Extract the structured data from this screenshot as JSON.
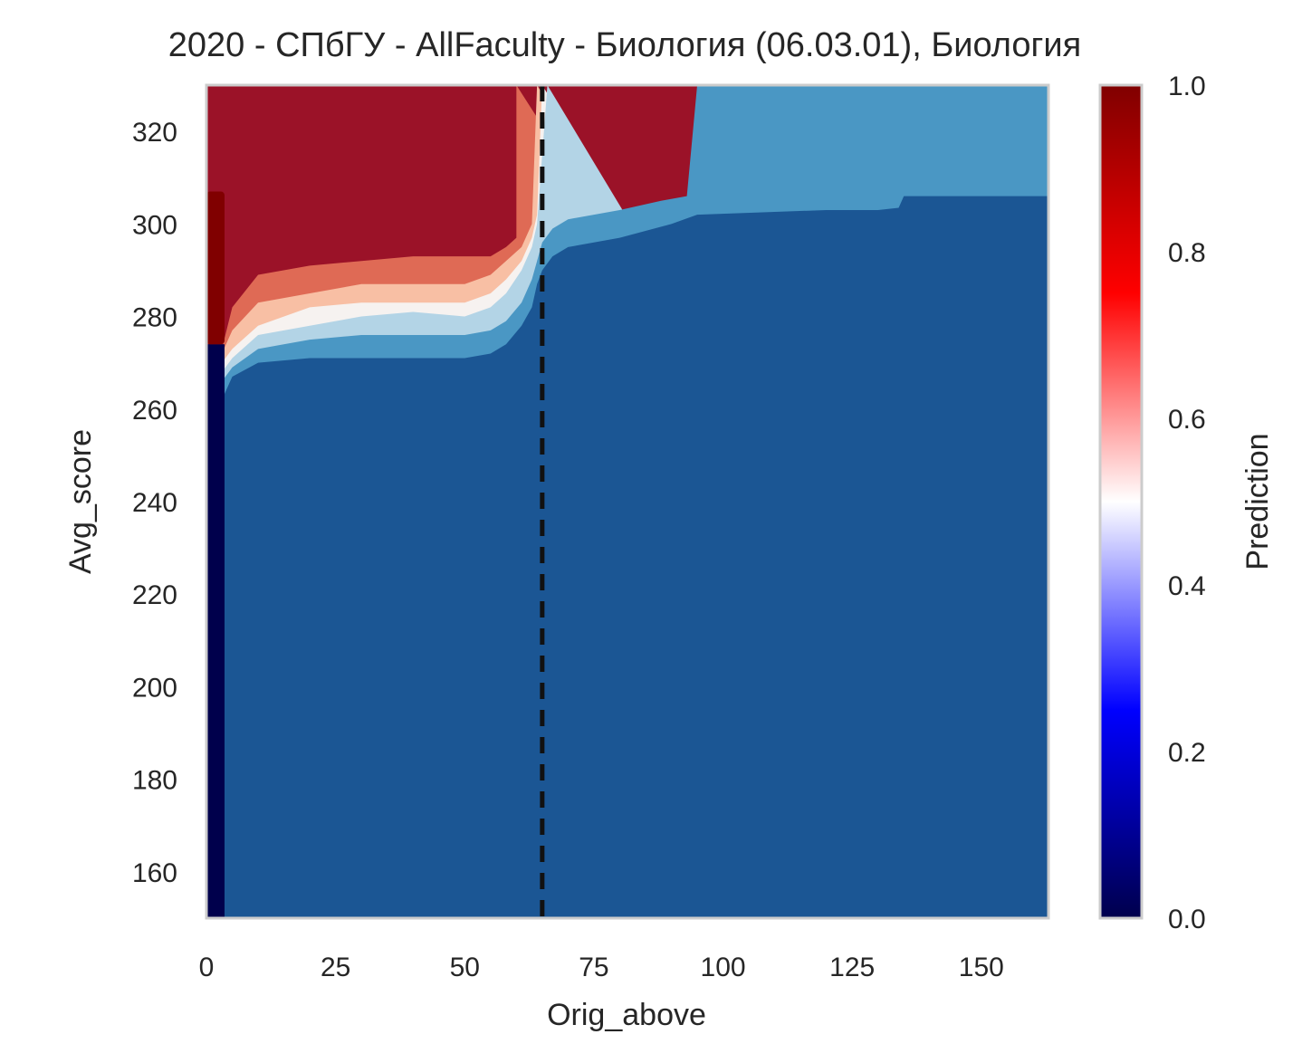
{
  "chart_data": {
    "type": "heatmap",
    "title": "2020 - СПбГУ - AllFaculty - Биология (06.03.01), Биология",
    "xlabel": "Orig_above",
    "ylabel": "Avg_score",
    "xlim": [
      0,
      163
    ],
    "ylim": [
      150,
      330
    ],
    "xticks": [
      0,
      25,
      50,
      75,
      100,
      125,
      150
    ],
    "yticks": [
      160,
      180,
      200,
      220,
      240,
      260,
      280,
      300,
      320
    ],
    "grid": false,
    "vline": {
      "x": 65,
      "style": "dashed",
      "color": "#111111"
    },
    "colorbar": {
      "label": "Prediction",
      "colormap": "seismic",
      "range": [
        0,
        1
      ],
      "ticks": [
        "0.0",
        "0.2",
        "0.4",
        "0.6",
        "0.8",
        "1.0"
      ],
      "stops": [
        "#00004c",
        "#0000ff",
        "#ffffff",
        "#ff0000",
        "#800000"
      ]
    },
    "contour_levels": [
      {
        "band": "0.0–0.1",
        "color": "#1b5694"
      },
      {
        "band": "0.1–0.2",
        "color": "#4a97c4"
      },
      {
        "band": "0.2–0.3",
        "color": "#b3d4e6"
      },
      {
        "band": "0.4–0.6",
        "color": "#f6f2f0"
      },
      {
        "band": "0.6–0.7",
        "color": "#f8bfa4"
      },
      {
        "band": "0.7–0.8",
        "color": "#df6a55"
      },
      {
        "band": "0.8–1.0",
        "color": "#9b1228"
      }
    ],
    "boundaries": {
      "top_of_dark_blue": [
        [
          3,
          262
        ],
        [
          5,
          267
        ],
        [
          10,
          270
        ],
        [
          20,
          271
        ],
        [
          30,
          271
        ],
        [
          40,
          271
        ],
        [
          50,
          271
        ],
        [
          55,
          272
        ],
        [
          58,
          274
        ],
        [
          61,
          278
        ],
        [
          63,
          282
        ],
        [
          64,
          287
        ],
        [
          65,
          290
        ],
        [
          67,
          293
        ],
        [
          70,
          295
        ],
        [
          80,
          297
        ],
        [
          90,
          300
        ],
        [
          95,
          302
        ],
        [
          120,
          303
        ],
        [
          130,
          303
        ],
        [
          134,
          303.5
        ],
        [
          135,
          306
        ],
        [
          163,
          306
        ]
      ],
      "top_of_mid_blue": [
        [
          3,
          266
        ],
        [
          5,
          269
        ],
        [
          10,
          273
        ],
        [
          20,
          275
        ],
        [
          30,
          276
        ],
        [
          40,
          276
        ],
        [
          50,
          276
        ],
        [
          55,
          277
        ],
        [
          58,
          279
        ],
        [
          61,
          283
        ],
        [
          63,
          288
        ],
        [
          64,
          292
        ],
        [
          65,
          296
        ],
        [
          67,
          299
        ],
        [
          70,
          301
        ],
        [
          80,
          303
        ],
        [
          88,
          305
        ],
        [
          93,
          306
        ],
        [
          95,
          330
        ],
        [
          163,
          330
        ]
      ],
      "top_of_light_blue": [
        [
          3,
          268
        ],
        [
          5,
          271
        ],
        [
          10,
          276
        ],
        [
          20,
          278
        ],
        [
          30,
          280
        ],
        [
          40,
          281
        ],
        [
          50,
          280
        ],
        [
          55,
          282
        ],
        [
          58,
          285
        ],
        [
          61,
          290
        ],
        [
          63,
          295
        ],
        [
          64,
          300
        ],
        [
          66,
          330
        ]
      ],
      "top_of_white": [
        [
          3,
          270
        ],
        [
          5,
          273
        ],
        [
          10,
          278
        ],
        [
          20,
          282
        ],
        [
          30,
          283
        ],
        [
          40,
          283
        ],
        [
          50,
          283
        ],
        [
          55,
          285
        ],
        [
          58,
          288
        ],
        [
          61,
          292
        ],
        [
          63,
          297
        ],
        [
          64,
          302
        ],
        [
          65,
          330
        ]
      ],
      "top_of_peach": [
        [
          3,
          272
        ],
        [
          5,
          277
        ],
        [
          10,
          283
        ],
        [
          20,
          285
        ],
        [
          30,
          287
        ],
        [
          40,
          287
        ],
        [
          50,
          287
        ],
        [
          55,
          289
        ],
        [
          58,
          292
        ],
        [
          61,
          295
        ],
        [
          63,
          300
        ],
        [
          64,
          330
        ]
      ],
      "top_of_salmon": [
        [
          3,
          273
        ],
        [
          5,
          282
        ],
        [
          10,
          289
        ],
        [
          20,
          291
        ],
        [
          30,
          292
        ],
        [
          40,
          293
        ],
        [
          50,
          293
        ],
        [
          55,
          293
        ],
        [
          58,
          295
        ],
        [
          60,
          297
        ],
        [
          60,
          330
        ]
      ]
    },
    "left_strip": {
      "x": [
        0,
        3.5
      ],
      "split_y": 274,
      "low": 0.0,
      "high": 1.0
    }
  }
}
